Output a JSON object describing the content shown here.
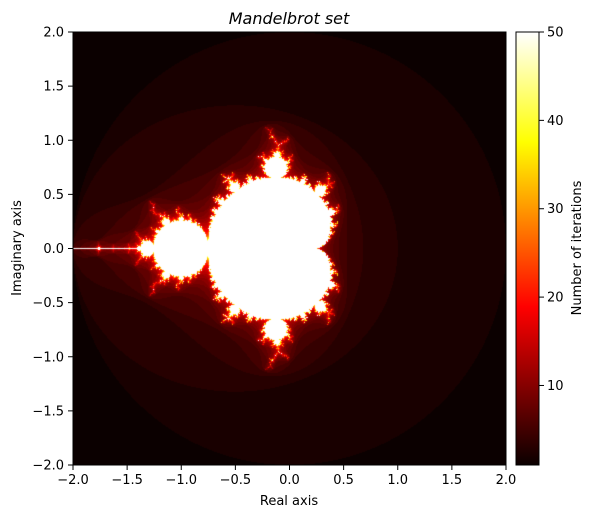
{
  "chart_data": {
    "type": "heatmap",
    "title": "Mandelbrot set",
    "xlabel": "Real axis",
    "ylabel": "Imaginary axis",
    "xlim": [
      -2.0,
      2.0
    ],
    "ylim": [
      -2.0,
      2.0
    ],
    "x_ticks": [
      "−2.0",
      "−1.5",
      "−1.0",
      "−0.5",
      "0.0",
      "0.5",
      "1.0",
      "1.5",
      "2.0"
    ],
    "y_ticks": [
      "−2.0",
      "−1.5",
      "−1.0",
      "−0.5",
      "0.0",
      "0.5",
      "1.0",
      "1.5",
      "2.0"
    ],
    "max_iterations": 50,
    "colormap": "hot",
    "colorbar": {
      "label": "Number of iterations",
      "range": [
        1,
        50
      ],
      "ticks": [
        "10",
        "20",
        "30",
        "40",
        "50"
      ]
    },
    "grid": false
  }
}
